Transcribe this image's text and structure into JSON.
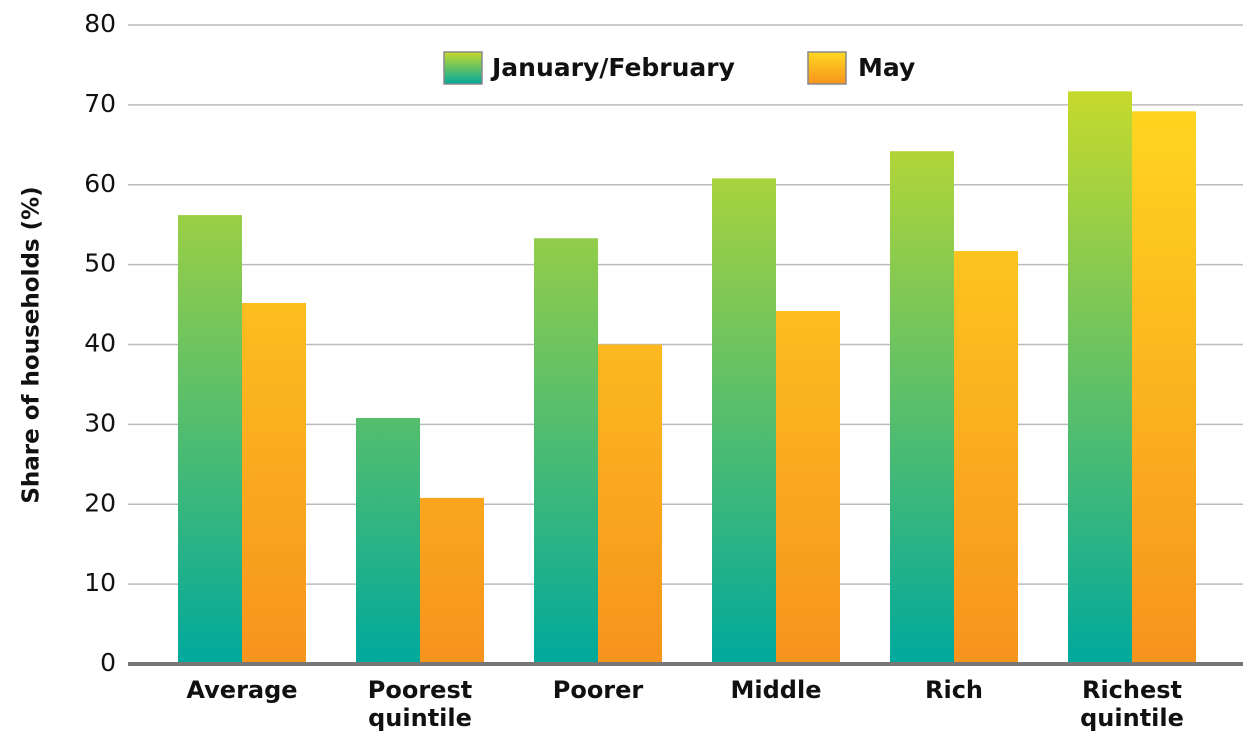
{
  "chart_data": {
    "type": "bar",
    "ylabel": "Share of households (%)",
    "categories": [
      "Average",
      "Poorest quintile",
      "Poorer",
      "Middle",
      "Rich",
      "Richest quintile"
    ],
    "series": [
      {
        "name": "January/February",
        "gradient": [
          "#c8da2b",
          "#00a99d"
        ],
        "values": [
          56.2,
          30.8,
          53.3,
          60.8,
          64.2,
          71.7
        ]
      },
      {
        "name": "May",
        "gradient": [
          "#ffd820",
          "#f7931e"
        ],
        "values": [
          45.2,
          20.8,
          40.0,
          44.2,
          51.7,
          69.2
        ]
      }
    ],
    "ylim": [
      0,
      80
    ],
    "yticks": [
      0,
      10,
      20,
      30,
      40,
      50,
      60,
      70,
      80
    ],
    "grid": true,
    "legend": "top"
  }
}
